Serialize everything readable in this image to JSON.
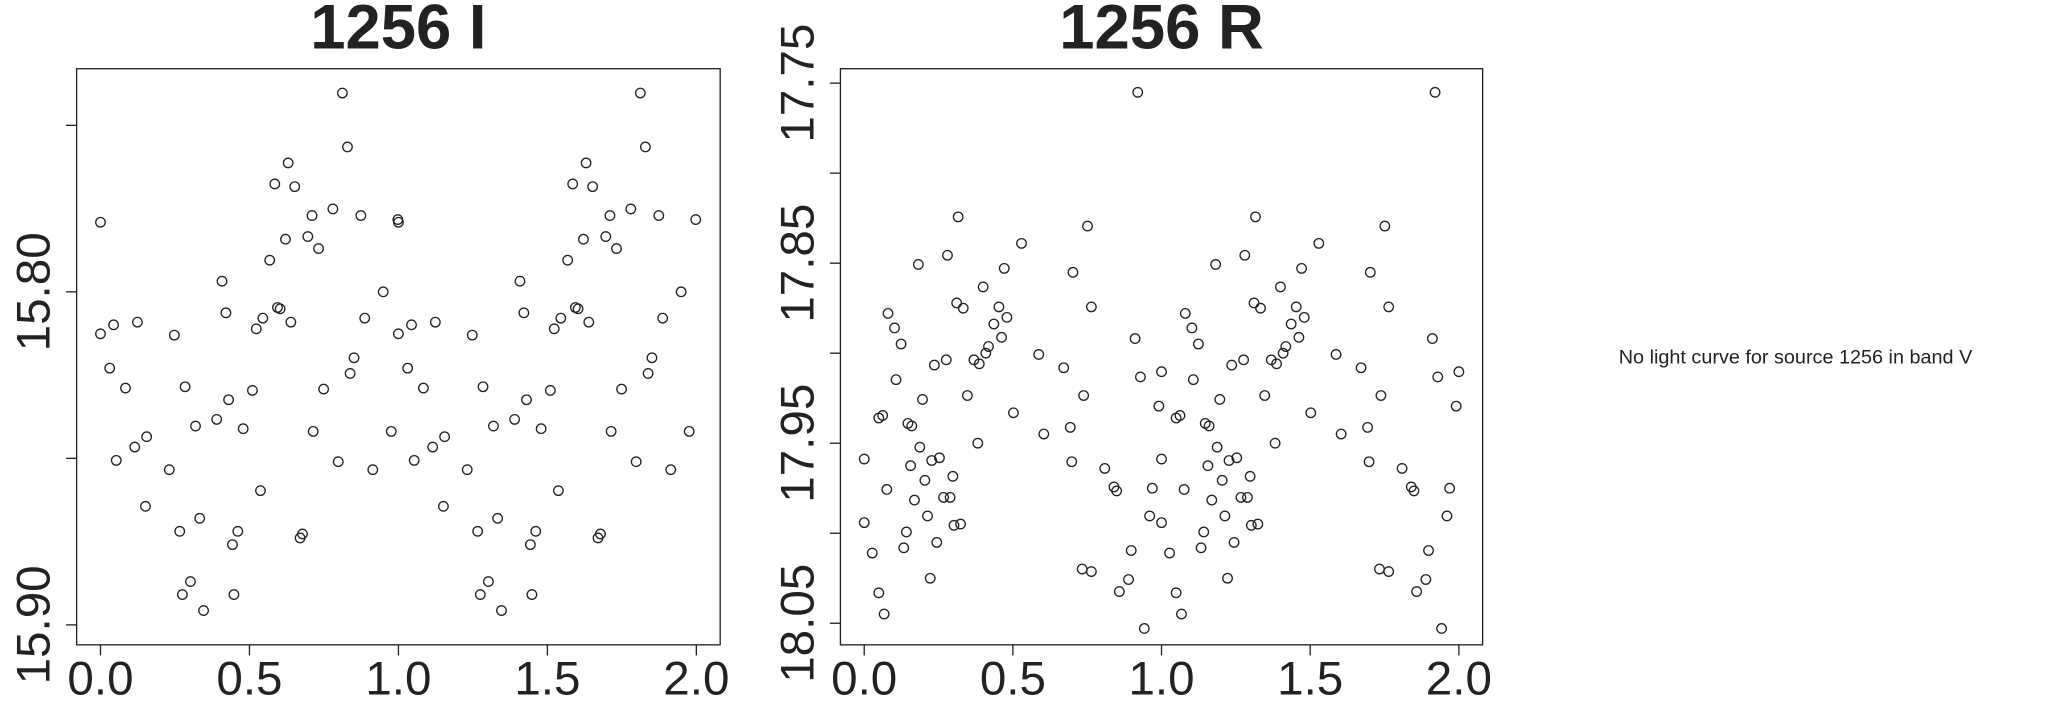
{
  "chart_data": [
    {
      "type": "scatter",
      "title": "1256 I",
      "color": "#222222",
      "xlim": [
        -0.08,
        2.08
      ],
      "ylim": [
        15.906,
        15.733
      ],
      "xticks": [
        {
          "value": 0,
          "label": "0.0"
        },
        {
          "value": 0.5,
          "label": "0.5"
        },
        {
          "value": 1,
          "label": "1.0"
        },
        {
          "value": 1.5,
          "label": "1.5"
        },
        {
          "value": 2,
          "label": "2.0"
        }
      ],
      "yticks": [
        {
          "value": 15.8,
          "label": "15.80"
        },
        {
          "value": 15.9,
          "label": "15.90"
        }
      ],
      "yticks_unlabeled": [
        15.75,
        15.85
      ],
      "x": [
        0.0,
        0.0,
        0.044,
        0.031,
        0.053,
        0.084,
        0.124,
        0.115,
        0.151,
        0.155,
        0.231,
        0.248,
        0.266,
        0.284,
        0.275,
        0.302,
        0.319,
        0.333,
        0.346,
        0.39,
        0.408,
        0.421,
        0.43,
        0.443,
        0.448,
        0.461,
        0.479,
        0.51,
        0.523,
        0.537,
        0.545,
        0.568,
        0.585,
        0.594,
        0.603,
        0.621,
        0.63,
        0.639,
        0.652,
        0.67,
        0.678,
        0.696,
        0.71,
        0.714,
        0.732,
        0.749,
        0.78,
        0.798,
        0.812,
        0.829,
        0.838,
        0.851,
        0.874,
        0.887,
        0.914,
        0.949,
        0.976,
        0.998,
        1.0,
        1.0,
        1.044,
        1.031,
        1.053,
        1.084,
        1.124,
        1.115,
        1.151,
        1.155,
        1.231,
        1.248,
        1.266,
        1.284,
        1.275,
        1.302,
        1.319,
        1.333,
        1.346,
        1.39,
        1.408,
        1.421,
        1.43,
        1.443,
        1.448,
        1.461,
        1.479,
        1.51,
        1.523,
        1.537,
        1.545,
        1.568,
        1.585,
        1.594,
        1.603,
        1.621,
        1.63,
        1.639,
        1.652,
        1.67,
        1.678,
        1.696,
        1.71,
        1.714,
        1.732,
        1.749,
        1.78,
        1.798,
        1.812,
        1.829,
        1.838,
        1.851,
        1.874,
        1.887,
        1.914,
        1.949,
        1.976,
        1.998
      ],
      "y": [
        15.7791,
        15.8126,
        15.8099,
        15.8229,
        15.8506,
        15.8289,
        15.8091,
        15.8466,
        15.8644,
        15.8435,
        15.8534,
        15.813,
        15.8719,
        15.8285,
        15.8909,
        15.887,
        15.8403,
        15.868,
        15.8957,
        15.8383,
        15.7968,
        15.8063,
        15.8324,
        15.8759,
        15.8909,
        15.8719,
        15.8411,
        15.8296,
        15.8111,
        15.8597,
        15.8079,
        15.7905,
        15.7676,
        15.8047,
        15.8051,
        15.7842,
        15.7613,
        15.8091,
        15.7684,
        15.8739,
        15.8727,
        15.7834,
        15.7771,
        15.8419,
        15.787,
        15.8292,
        15.7751,
        15.851,
        15.7403,
        15.7565,
        15.8245,
        15.8198,
        15.7771,
        15.8079,
        15.8534,
        15.8,
        15.8419,
        15.7783,
        15.7791,
        15.8126,
        15.8099,
        15.8229,
        15.8506,
        15.8289,
        15.8091,
        15.8466,
        15.8644,
        15.8435,
        15.8534,
        15.813,
        15.8719,
        15.8285,
        15.8909,
        15.887,
        15.8403,
        15.868,
        15.8957,
        15.8383,
        15.7968,
        15.8063,
        15.8324,
        15.8759,
        15.8909,
        15.8719,
        15.8411,
        15.8296,
        15.8111,
        15.8597,
        15.8079,
        15.7905,
        15.7676,
        15.8047,
        15.8051,
        15.7842,
        15.7613,
        15.8091,
        15.7684,
        15.8739,
        15.8727,
        15.7834,
        15.7771,
        15.8419,
        15.787,
        15.8292,
        15.7751,
        15.851,
        15.7403,
        15.7565,
        15.8245,
        15.8198,
        15.7771,
        15.8079,
        15.8534,
        15.8,
        15.8419,
        15.7783
      ]
    },
    {
      "type": "scatter",
      "title": "1256 R",
      "color": "#222222",
      "xlim": [
        -0.08,
        2.08
      ],
      "ylim": [
        18.062,
        17.742
      ],
      "xticks": [
        {
          "value": 0,
          "label": "0.0"
        },
        {
          "value": 0.5,
          "label": "0.5"
        },
        {
          "value": 1,
          "label": "1.0"
        },
        {
          "value": 1.5,
          "label": "1.5"
        },
        {
          "value": 2,
          "label": "2.0"
        }
      ],
      "yticks": [
        17.75,
        17.85,
        17.95,
        18.05
      ],
      "yticks_unlabeled": [
        17.8,
        17.9,
        18.0
      ],
      "x": [
        0.0,
        0.0,
        0.027,
        0.049,
        0.067,
        0.049,
        0.062,
        0.076,
        0.08,
        0.102,
        0.107,
        0.124,
        0.133,
        0.142,
        0.147,
        0.156,
        0.16,
        0.169,
        0.182,
        0.187,
        0.196,
        0.204,
        0.213,
        0.222,
        0.227,
        0.236,
        0.244,
        0.253,
        0.267,
        0.276,
        0.28,
        0.289,
        0.298,
        0.302,
        0.311,
        0.316,
        0.324,
        0.333,
        0.347,
        0.369,
        0.382,
        0.387,
        0.4,
        0.409,
        0.418,
        0.436,
        0.453,
        0.462,
        0.471,
        0.48,
        0.502,
        0.529,
        0.587,
        0.604,
        0.671,
        0.693,
        0.698,
        0.702,
        0.738,
        0.751,
        0.764,
        0.733,
        0.764,
        0.809,
        0.84,
        0.849,
        0.858,
        0.889,
        0.898,
        0.911,
        0.92,
        0.929,
        0.942,
        0.96,
        0.969,
        0.991,
        1.0,
        1.0,
        1.0,
        1.027,
        1.049,
        1.067,
        1.049,
        1.062,
        1.076,
        1.08,
        1.102,
        1.107,
        1.124,
        1.133,
        1.142,
        1.147,
        1.156,
        1.16,
        1.169,
        1.182,
        1.187,
        1.196,
        1.204,
        1.213,
        1.222,
        1.227,
        1.236,
        1.244,
        1.253,
        1.267,
        1.276,
        1.28,
        1.289,
        1.298,
        1.302,
        1.311,
        1.316,
        1.324,
        1.333,
        1.347,
        1.369,
        1.382,
        1.387,
        1.4,
        1.409,
        1.418,
        1.436,
        1.453,
        1.462,
        1.471,
        1.48,
        1.502,
        1.529,
        1.587,
        1.604,
        1.671,
        1.693,
        1.698,
        1.702,
        1.738,
        1.751,
        1.764,
        1.733,
        1.764,
        1.809,
        1.84,
        1.849,
        1.858,
        1.889,
        1.898,
        1.911,
        1.92,
        1.929,
        1.942,
        1.96,
        1.969,
        1.991,
        2.0
      ],
      "y": [
        17.9588,
        17.9941,
        18.011,
        18.0331,
        18.0449,
        17.936,
        17.9346,
        17.9757,
        17.8779,
        17.886,
        17.9147,
        17.8949,
        18.0081,
        17.9993,
        17.939,
        17.9625,
        17.9404,
        17.9816,
        17.8507,
        17.9522,
        17.9257,
        17.9706,
        17.9904,
        18.025,
        17.9596,
        17.9066,
        18.0051,
        17.9581,
        17.9801,
        17.9037,
        17.8456,
        17.9801,
        17.9684,
        17.9956,
        17.8721,
        17.8243,
        17.9949,
        17.875,
        17.9235,
        17.9037,
        17.95,
        17.9059,
        17.8632,
        17.9,
        17.8963,
        17.8838,
        17.8743,
        17.8912,
        17.8529,
        17.8801,
        17.9331,
        17.839,
        17.9007,
        17.9449,
        17.9081,
        17.9412,
        17.9603,
        17.8551,
        17.9235,
        17.8294,
        17.8743,
        18.0199,
        18.0213,
        17.964,
        17.9743,
        17.9765,
        18.0324,
        18.0257,
        18.0096,
        17.8919,
        17.7551,
        17.9132,
        18.0529,
        17.9904,
        17.975,
        17.9294,
        17.9103,
        17.9588,
        17.9941,
        18.011,
        18.0331,
        18.0449,
        17.936,
        17.9346,
        17.9757,
        17.8779,
        17.886,
        17.9147,
        17.8949,
        18.0081,
        17.9993,
        17.939,
        17.9625,
        17.9404,
        17.9816,
        17.8507,
        17.9522,
        17.9257,
        17.9706,
        17.9904,
        18.025,
        17.9596,
        17.9066,
        18.0051,
        17.9581,
        17.9801,
        17.9037,
        17.8456,
        17.9801,
        17.9684,
        17.9956,
        17.8721,
        17.8243,
        17.9949,
        17.875,
        17.9235,
        17.9037,
        17.95,
        17.9059,
        17.8632,
        17.9,
        17.8963,
        17.8838,
        17.8743,
        17.8912,
        17.8529,
        17.8801,
        17.9331,
        17.839,
        17.9007,
        17.9449,
        17.9081,
        17.9412,
        17.9603,
        17.8551,
        17.9235,
        17.8294,
        17.8743,
        18.0199,
        18.0213,
        17.964,
        17.9743,
        17.9765,
        18.0324,
        18.0257,
        18.0096,
        17.8919,
        17.7551,
        17.9132,
        18.0529,
        17.9904,
        17.975,
        17.9294,
        17.9103
      ]
    }
  ],
  "message": "No light curve for source 1256 in band V"
}
